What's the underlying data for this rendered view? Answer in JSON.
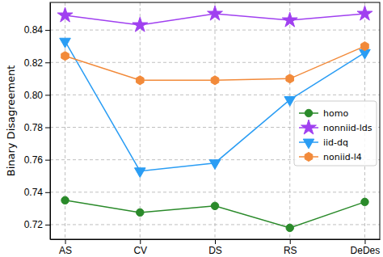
{
  "chart_data": {
    "type": "line",
    "y_label": "Binary Disagreement",
    "categories": [
      "AS",
      "CV",
      "DS",
      "RS",
      "DeDes"
    ],
    "series": [
      {
        "name": "homo",
        "color": "#2a8a2a",
        "marker": "circle",
        "values": [
          0.735,
          0.7275,
          0.7315,
          0.718,
          0.734
        ]
      },
      {
        "name": "nonniid-lds",
        "color": "#a040f0",
        "marker": "star",
        "values": [
          0.849,
          0.843,
          0.85,
          0.846,
          0.85
        ]
      },
      {
        "name": "iid-dq",
        "color": "#2a9df4",
        "marker": "triangle_down",
        "values": [
          0.833,
          0.753,
          0.758,
          0.797,
          0.826
        ]
      },
      {
        "name": "noniid-l4",
        "color": "#f28a3a",
        "marker": "hexagon",
        "values": [
          0.824,
          0.809,
          0.809,
          0.81,
          0.83
        ]
      }
    ],
    "ylim": [
      0.711,
      0.857
    ],
    "yticks": [
      0.72,
      0.74,
      0.76,
      0.78,
      {
        "value": 0.8,
        "label": "0.80"
      },
      0.82,
      0.84
    ],
    "grid": true,
    "legend": "right"
  }
}
